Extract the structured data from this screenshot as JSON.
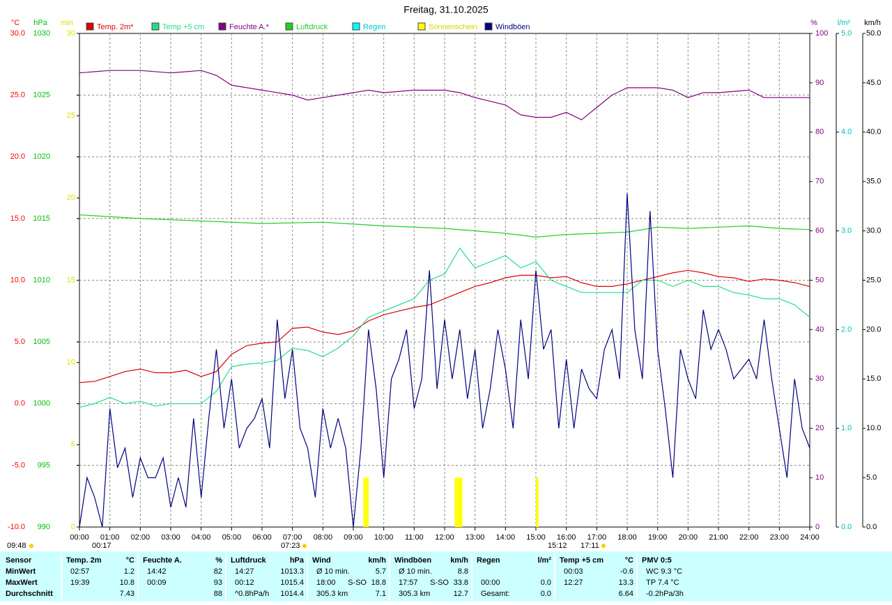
{
  "chart_data": {
    "type": "line",
    "title": "Freitag, 31.10.2025",
    "xlim": [
      0,
      24
    ],
    "xticks": [
      {
        "value": 0,
        "label": "00:00"
      },
      {
        "value": 1,
        "label": "01:00"
      },
      {
        "value": 2,
        "label": "02:00"
      },
      {
        "value": 3,
        "label": "03:00"
      },
      {
        "value": 4,
        "label": "04:00"
      },
      {
        "value": 5,
        "label": "05:00"
      },
      {
        "value": 6,
        "label": "06:00"
      },
      {
        "value": 7,
        "label": "07:00"
      },
      {
        "value": 8,
        "label": "08:00"
      },
      {
        "value": 9,
        "label": "09:00"
      },
      {
        "value": 10,
        "label": "10:00"
      },
      {
        "value": 11,
        "label": "11:00"
      },
      {
        "value": 12,
        "label": "12:00"
      },
      {
        "value": 13,
        "label": "13:00"
      },
      {
        "value": 14,
        "label": "14:00"
      },
      {
        "value": 15,
        "label": "15:00"
      },
      {
        "value": 16,
        "label": "16:00"
      },
      {
        "value": 17,
        "label": "17:00"
      },
      {
        "value": 18,
        "label": "18:00"
      },
      {
        "value": 19,
        "label": "19:00"
      },
      {
        "value": 20,
        "label": "20:00"
      },
      {
        "value": 21,
        "label": "21:00"
      },
      {
        "value": 22,
        "label": "22:00"
      },
      {
        "value": 23,
        "label": "23:00"
      },
      {
        "value": 24,
        "label": "24:00"
      }
    ],
    "y_label": "°C",
    "y_color": "#ff0000",
    "ylim": [
      -10,
      30
    ],
    "yticks": [
      {
        "value": -10,
        "label": "-10.0"
      },
      {
        "value": -5,
        "label": "-5.0"
      },
      {
        "value": 0,
        "label": "0.0"
      },
      {
        "value": 5,
        "label": "5.0"
      },
      {
        "value": 10,
        "label": "10.0"
      },
      {
        "value": 15,
        "label": "15.0"
      },
      {
        "value": 20,
        "label": "20.0"
      },
      {
        "value": 25,
        "label": "25.0"
      },
      {
        "value": 30,
        "label": "30.0"
      }
    ],
    "y2_label": "hPa",
    "y2_color": "#00c000",
    "y2lim": [
      990,
      1030
    ],
    "y2ticks": [
      990,
      995,
      1000,
      1005,
      1010,
      1015,
      1020,
      1025,
      1030
    ],
    "y3_label": "min",
    "y3_color": "#e0e000",
    "y3lim": [
      0,
      30
    ],
    "y3ticks": [
      0,
      5,
      10,
      15,
      20,
      25,
      30
    ],
    "y4_label": "%",
    "y4_color": "#800080",
    "y4lim": [
      0,
      100
    ],
    "y4ticks": [
      0,
      10,
      20,
      30,
      40,
      50,
      60,
      70,
      80,
      90,
      100
    ],
    "y5_label": "l/m²",
    "y5_color": "#00c0c0",
    "y5lim": [
      0,
      5
    ],
    "y5ticks": [
      {
        "value": 0,
        "label": "0.0"
      },
      {
        "value": 1,
        "label": "1.0"
      },
      {
        "value": 2,
        "label": "2.0"
      },
      {
        "value": 3,
        "label": "3.0"
      },
      {
        "value": 4,
        "label": "4.0"
      },
      {
        "value": 5,
        "label": "5.0"
      }
    ],
    "y6_label": "km/h",
    "y6_color": "#000000",
    "y6lim": [
      0,
      50
    ],
    "y6ticks": [
      {
        "value": 0,
        "label": "0.0"
      },
      {
        "value": 5,
        "label": "5.0"
      },
      {
        "value": 10,
        "label": "10.0"
      },
      {
        "value": 15,
        "label": "15.0"
      },
      {
        "value": 20,
        "label": "20.0"
      },
      {
        "value": 25,
        "label": "25.0"
      },
      {
        "value": 30,
        "label": "30.0"
      },
      {
        "value": 35,
        "label": "35.0"
      },
      {
        "value": 40,
        "label": "40.0"
      },
      {
        "value": 45,
        "label": "45.0"
      },
      {
        "value": 50,
        "label": "50.0"
      }
    ],
    "grid": true,
    "annotations": [
      "09:48",
      "00:17",
      "07:23",
      "15:12",
      "17:11"
    ],
    "series": [
      {
        "name": "Temp. 2m*",
        "color": "#dd0000",
        "axis": "y",
        "kind": "line",
        "x": [
          0,
          0.5,
          1,
          1.5,
          2,
          2.5,
          3,
          3.5,
          4,
          4.5,
          5,
          5.5,
          6,
          6.5,
          7,
          7.5,
          8,
          8.5,
          9,
          9.5,
          10,
          10.5,
          11,
          11.5,
          12,
          12.5,
          13,
          13.5,
          14,
          14.5,
          15,
          15.5,
          16,
          16.5,
          17,
          17.5,
          18,
          18.5,
          19,
          19.5,
          20,
          20.5,
          21,
          21.5,
          22,
          22.5,
          23,
          23.5,
          24
        ],
        "values": [
          1.7,
          1.8,
          2.2,
          2.6,
          2.8,
          2.5,
          2.5,
          2.7,
          2.2,
          2.6,
          4.0,
          4.7,
          4.9,
          5.0,
          6.1,
          6.2,
          5.8,
          5.6,
          5.9,
          6.7,
          7.2,
          7.5,
          7.8,
          8.0,
          8.5,
          9.0,
          9.5,
          9.8,
          10.2,
          10.4,
          10.4,
          10.2,
          10.3,
          9.8,
          9.5,
          9.5,
          9.7,
          10.0,
          10.3,
          10.6,
          10.8,
          10.6,
          10.3,
          10.2,
          9.9,
          10.1,
          10.0,
          9.8,
          9.5
        ]
      },
      {
        "name": "Temp +5 cm",
        "color": "#22dd88",
        "axis": "y",
        "kind": "line",
        "x": [
          0,
          0.5,
          1,
          1.5,
          2,
          2.5,
          3,
          3.5,
          4,
          4.5,
          5,
          5.5,
          6,
          6.5,
          7,
          7.5,
          8,
          8.5,
          9,
          9.5,
          10,
          10.5,
          11,
          11.5,
          12,
          12.5,
          13,
          13.5,
          14,
          14.5,
          15,
          15.5,
          16,
          16.5,
          17,
          17.5,
          18,
          18.5,
          19,
          19.5,
          20,
          20.5,
          21,
          21.5,
          22,
          22.5,
          23,
          23.5,
          24
        ],
        "values": [
          -0.3,
          0.0,
          0.5,
          0.0,
          0.2,
          -0.2,
          0.0,
          0.0,
          0.0,
          1.0,
          3.0,
          3.2,
          3.3,
          3.5,
          4.5,
          4.3,
          3.8,
          4.5,
          5.5,
          7.0,
          7.5,
          8.0,
          8.5,
          10.0,
          10.5,
          12.6,
          11.0,
          11.5,
          12.0,
          11.0,
          11.5,
          10.0,
          9.5,
          9.0,
          9.0,
          9.0,
          9.0,
          10.0,
          10.0,
          9.5,
          10.0,
          9.5,
          9.5,
          9.0,
          8.8,
          8.5,
          8.5,
          8.0,
          7.0
        ]
      },
      {
        "name": "Feuchte A.*",
        "color": "#800080",
        "axis": "y4",
        "kind": "line",
        "x": [
          0,
          1,
          2,
          3,
          4,
          4.5,
          5,
          6,
          7,
          7.5,
          8,
          9,
          9.5,
          10,
          11,
          12,
          12.5,
          13,
          14,
          14.5,
          15,
          15.5,
          16,
          16.5,
          17,
          17.5,
          18,
          19,
          19.5,
          20,
          20.5,
          21,
          22,
          22.5,
          23,
          24
        ],
        "values": [
          92,
          92.5,
          92.5,
          92,
          92.5,
          91.5,
          89.5,
          88.5,
          87.5,
          86.5,
          87,
          88,
          88.5,
          88,
          88.5,
          88.5,
          88,
          87,
          85.5,
          83.5,
          83,
          83,
          84,
          82.5,
          85,
          87.5,
          89,
          89,
          88.5,
          87,
          88,
          88,
          88.5,
          87,
          87,
          87
        ]
      },
      {
        "name": "Luftdruck",
        "color": "#22cc22",
        "axis": "y2",
        "kind": "line",
        "x": [
          0,
          2,
          4,
          6,
          8,
          10,
          12,
          13,
          14,
          15,
          16,
          17,
          18,
          19,
          20,
          21,
          22,
          23,
          24
        ],
        "values": [
          1015.3,
          1015.0,
          1014.8,
          1014.6,
          1014.7,
          1014.4,
          1014.2,
          1014.0,
          1013.8,
          1013.5,
          1013.7,
          1013.8,
          1013.9,
          1014.3,
          1014.2,
          1014.3,
          1014.4,
          1014.2,
          1014.1
        ]
      },
      {
        "name": "Regen",
        "color": "#00ffff",
        "axis": "y5",
        "kind": "bar",
        "x": [],
        "values": []
      },
      {
        "name": "Sonnenschein",
        "color": "#ffff00",
        "axis": "y3",
        "kind": "bar",
        "x": [
          9.33,
          9.42,
          12.33,
          12.42,
          12.5,
          15.0
        ],
        "values": [
          3,
          3,
          3,
          3,
          3,
          3
        ]
      },
      {
        "name": "Windböen",
        "color": "#000080",
        "axis": "y6",
        "kind": "line",
        "x": [
          0,
          0.25,
          0.5,
          0.75,
          1,
          1.25,
          1.5,
          1.75,
          2,
          2.25,
          2.5,
          2.75,
          3,
          3.25,
          3.5,
          3.75,
          4,
          4.25,
          4.5,
          4.75,
          5,
          5.25,
          5.5,
          5.75,
          6,
          6.25,
          6.5,
          6.75,
          7,
          7.25,
          7.5,
          7.75,
          8,
          8.25,
          8.5,
          8.75,
          9,
          9.25,
          9.5,
          9.75,
          10,
          10.25,
          10.5,
          10.75,
          11,
          11.25,
          11.5,
          11.75,
          12,
          12.25,
          12.5,
          12.75,
          13,
          13.25,
          13.5,
          13.75,
          14,
          14.25,
          14.5,
          14.75,
          15,
          15.25,
          15.5,
          15.75,
          16,
          16.25,
          16.5,
          16.75,
          17,
          17.25,
          17.5,
          17.75,
          18,
          18.25,
          18.5,
          18.75,
          19,
          19.25,
          19.5,
          19.75,
          20,
          20.25,
          20.5,
          20.75,
          21,
          21.25,
          21.5,
          21.75,
          22,
          22.25,
          22.5,
          22.75,
          23,
          23.25,
          23.5,
          23.75,
          24
        ],
        "values": [
          0,
          5,
          3,
          0,
          12,
          6,
          8,
          3,
          7,
          5,
          5,
          7,
          2,
          5,
          2,
          11,
          3,
          11,
          18,
          10,
          15,
          8,
          10,
          11,
          13,
          8,
          21,
          13,
          18,
          10,
          8,
          3,
          12,
          8,
          11,
          8,
          0,
          8,
          20,
          14,
          5,
          15,
          17,
          20,
          12,
          15,
          26,
          14,
          21,
          15,
          20,
          13,
          18,
          10,
          14,
          20,
          16,
          10,
          21,
          15,
          26,
          18,
          20,
          10,
          17,
          10,
          16,
          14,
          13,
          18,
          20,
          15,
          33.8,
          20,
          15,
          32,
          18,
          12,
          5,
          18,
          15,
          13,
          22,
          18,
          20,
          18,
          15,
          16,
          17,
          15,
          21,
          15,
          10,
          5,
          15,
          10,
          8
        ]
      }
    ]
  },
  "table": {
    "header": [
      {
        "label": "Sensor"
      },
      {
        "label": "Temp. 2m",
        "unit": "°C"
      },
      {
        "label": "Feuchte A.",
        "unit": "%"
      },
      {
        "label": "Luftdruck",
        "unit": "hPa"
      },
      {
        "label": "Wind",
        "unit": "km/h"
      },
      {
        "label": "Windböen",
        "unit": "km/h"
      },
      {
        "label": "Regen",
        "unit": "l/m²"
      },
      {
        "label": "Temp +5 cm",
        "unit": "°C"
      },
      {
        "label": "PMV 0:5"
      }
    ],
    "rows": [
      {
        "name": "MinWert",
        "cells": [
          {
            "label": "02:57",
            "value": "1.2"
          },
          {
            "label": "14:42",
            "value": "82"
          },
          {
            "label": "14:27",
            "value": "1013.3"
          },
          {
            "label": "Ø 10 min.",
            "value": "5.7"
          },
          {
            "label": "Ø 10 min.",
            "value": "8.8"
          },
          {},
          {
            "label": "00:03",
            "value": "-0.6"
          },
          {
            "label": "WC 9.3 °C"
          }
        ]
      },
      {
        "name": "MaxWert",
        "cells": [
          {
            "label": "19:39",
            "value": "10.8"
          },
          {
            "label": "00:09",
            "value": "93"
          },
          {
            "label": "00:12",
            "value": "1015.4"
          },
          {
            "label": "18:00",
            "dir": "S-SO",
            "value": "18.8"
          },
          {
            "label": "17:57",
            "dir": "S-SO",
            "value": "33.8"
          },
          {
            "label": "00:00",
            "value": "0.0"
          },
          {
            "label": "12:27",
            "value": "13.3"
          },
          {
            "label": "TP 7.4 °C"
          }
        ]
      },
      {
        "name": "Durchschnitt",
        "cells": [
          {
            "value": "7.43"
          },
          {
            "value": "88"
          },
          {
            "label": "^0.8hPa/h",
            "value": "1014.4"
          },
          {
            "label": "305.3 km",
            "value": "7.1"
          },
          {
            "label": "305.3 km",
            "value": "12.7"
          },
          {
            "label": "Gesamt:",
            "value": "0.0"
          },
          {
            "value": "6.64"
          },
          {
            "label": "-0.2hPa/3h"
          }
        ]
      }
    ]
  }
}
